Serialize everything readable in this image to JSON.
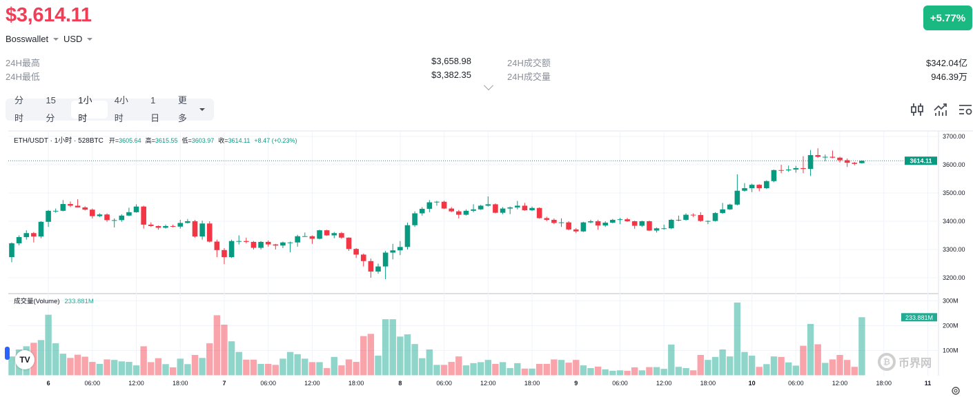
{
  "header": {
    "price": "$3,614.11",
    "exchange": "Bosswallet",
    "currency": "USD",
    "change_badge": "+5.77%",
    "colors": {
      "down": "#f23d57",
      "up": "#19b981"
    }
  },
  "stats": [
    {
      "label": "24H最高",
      "value": "$3,658.98"
    },
    {
      "label": "24H最低",
      "value": "$3,382.35"
    },
    {
      "label": "24H成交额",
      "value": "$342.04亿"
    },
    {
      "label": "24H成交量",
      "value": "946.39万"
    }
  ],
  "intervals": [
    {
      "label": "分时",
      "active": false
    },
    {
      "label": "15分",
      "active": false
    },
    {
      "label": "1小时",
      "active": true
    },
    {
      "label": "4小时",
      "active": false
    },
    {
      "label": "1日",
      "active": false
    },
    {
      "label": "更多",
      "active": false
    }
  ],
  "toolbar_icons": [
    "candlestick-icon",
    "indicator-icon",
    "settings-list-icon"
  ],
  "legend": {
    "symbol": "ETH/USDT · 1小时 · 528BTC",
    "open_label": "开=",
    "open": "3605.64",
    "high_label": "高=",
    "high": "3615.55",
    "low_label": "低=",
    "low": "3603.97",
    "close_label": "收=",
    "close": "3614.11",
    "change": "+8.47 (+0.23%)"
  },
  "volume_legend": {
    "label": "成交量(Volume)",
    "value": "233.881M"
  },
  "watermark": "币界网",
  "tv_logo": "TV",
  "chart_data": {
    "type": "candlestick",
    "interval": "1h",
    "first_bar": "5 19:00",
    "price_axis": {
      "ticks": [
        "3700.00",
        "3600.00",
        "3500.00",
        "3400.00",
        "3300.00",
        "3200.00"
      ],
      "tick_values": [
        3700,
        3600,
        3500,
        3400,
        3300,
        3200
      ],
      "range": [
        3180,
        3740
      ]
    },
    "volume_axis": {
      "ticks": [
        "300M",
        "200M",
        "100M"
      ],
      "tick_values": [
        300,
        200,
        100
      ],
      "unit": "M"
    },
    "last_price_label": "3614.11",
    "last_price": 3614.11,
    "last_volume_label": "233.881M",
    "last_volume": 233.881,
    "time_ticks": [
      {
        "label": "6",
        "bar": 5
      },
      {
        "label": "06:00",
        "bar": 11
      },
      {
        "label": "12:00",
        "bar": 17
      },
      {
        "label": "18:00",
        "bar": 23
      },
      {
        "label": "7",
        "bar": 29
      },
      {
        "label": "06:00",
        "bar": 35
      },
      {
        "label": "12:00",
        "bar": 41
      },
      {
        "label": "18:00",
        "bar": 47
      },
      {
        "label": "8",
        "bar": 53
      },
      {
        "label": "06:00",
        "bar": 59
      },
      {
        "label": "12:00",
        "bar": 65
      },
      {
        "label": "18:00",
        "bar": 71
      },
      {
        "label": "9",
        "bar": 77
      },
      {
        "label": "06:00",
        "bar": 83
      },
      {
        "label": "12:00",
        "bar": 89
      },
      {
        "label": "18:00",
        "bar": 95
      },
      {
        "label": "10",
        "bar": 101
      },
      {
        "label": "06:00",
        "bar": 107
      },
      {
        "label": "12:00",
        "bar": 113
      },
      {
        "label": "18:00",
        "bar": 119
      },
      {
        "label": "11",
        "bar": 125
      }
    ],
    "ohlc": [
      [
        3273,
        3325,
        3255,
        3322
      ],
      [
        3322,
        3350,
        3315,
        3344
      ],
      [
        3344,
        3368,
        3335,
        3358
      ],
      [
        3358,
        3362,
        3325,
        3346
      ],
      [
        3346,
        3400,
        3340,
        3398
      ],
      [
        3398,
        3440,
        3380,
        3437
      ],
      [
        3437,
        3445,
        3430,
        3437
      ],
      [
        3437,
        3475,
        3435,
        3461
      ],
      [
        3461,
        3470,
        3450,
        3455
      ],
      [
        3455,
        3478,
        3450,
        3449
      ],
      [
        3449,
        3453,
        3438,
        3441
      ],
      [
        3441,
        3445,
        3410,
        3418
      ],
      [
        3418,
        3428,
        3415,
        3424
      ],
      [
        3424,
        3428,
        3398,
        3404
      ],
      [
        3404,
        3410,
        3378,
        3404
      ],
      [
        3404,
        3425,
        3398,
        3420
      ],
      [
        3420,
        3448,
        3418,
        3432
      ],
      [
        3432,
        3460,
        3430,
        3452
      ],
      [
        3452,
        3455,
        3374,
        3388
      ],
      [
        3388,
        3396,
        3380,
        3383
      ],
      [
        3383,
        3385,
        3370,
        3377
      ],
      [
        3377,
        3388,
        3374,
        3383
      ],
      [
        3383,
        3388,
        3378,
        3381
      ],
      [
        3381,
        3405,
        3374,
        3394
      ],
      [
        3394,
        3408,
        3392,
        3400
      ],
      [
        3400,
        3405,
        3342,
        3346
      ],
      [
        3346,
        3402,
        3335,
        3392
      ],
      [
        3392,
        3400,
        3325,
        3328
      ],
      [
        3328,
        3335,
        3273,
        3298
      ],
      [
        3298,
        3305,
        3248,
        3273
      ],
      [
        3273,
        3335,
        3270,
        3330
      ],
      [
        3330,
        3350,
        3318,
        3330
      ],
      [
        3330,
        3342,
        3322,
        3327
      ],
      [
        3327,
        3330,
        3300,
        3306
      ],
      [
        3306,
        3330,
        3300,
        3327
      ],
      [
        3327,
        3332,
        3310,
        3318
      ],
      [
        3318,
        3320,
        3300,
        3314
      ],
      [
        3314,
        3328,
        3305,
        3325
      ],
      [
        3325,
        3328,
        3290,
        3325
      ],
      [
        3325,
        3352,
        3310,
        3347
      ],
      [
        3347,
        3360,
        3345,
        3347
      ],
      [
        3347,
        3350,
        3320,
        3338
      ],
      [
        3338,
        3370,
        3336,
        3368
      ],
      [
        3368,
        3370,
        3348,
        3350
      ],
      [
        3350,
        3362,
        3340,
        3358
      ],
      [
        3358,
        3362,
        3338,
        3342
      ],
      [
        3342,
        3343,
        3295,
        3302
      ],
      [
        3302,
        3305,
        3270,
        3282
      ],
      [
        3282,
        3286,
        3240,
        3259
      ],
      [
        3259,
        3268,
        3200,
        3222
      ],
      [
        3222,
        3250,
        3215,
        3240
      ],
      [
        3240,
        3295,
        3195,
        3289
      ],
      [
        3289,
        3320,
        3265,
        3297
      ],
      [
        3297,
        3330,
        3280,
        3309
      ],
      [
        3309,
        3395,
        3300,
        3386
      ],
      [
        3386,
        3435,
        3380,
        3428
      ],
      [
        3428,
        3450,
        3420,
        3444
      ],
      [
        3444,
        3475,
        3432,
        3467
      ],
      [
        3467,
        3472,
        3455,
        3469
      ],
      [
        3469,
        3473,
        3443,
        3445
      ],
      [
        3445,
        3450,
        3432,
        3435
      ],
      [
        3435,
        3440,
        3410,
        3423
      ],
      [
        3423,
        3442,
        3420,
        3437
      ],
      [
        3437,
        3460,
        3432,
        3442
      ],
      [
        3442,
        3458,
        3440,
        3455
      ],
      [
        3455,
        3488,
        3452,
        3460
      ],
      [
        3460,
        3463,
        3428,
        3430
      ],
      [
        3430,
        3450,
        3425,
        3445
      ],
      [
        3445,
        3452,
        3425,
        3449
      ],
      [
        3449,
        3472,
        3442,
        3455
      ],
      [
        3455,
        3465,
        3437,
        3439
      ],
      [
        3439,
        3452,
        3436,
        3447
      ],
      [
        3447,
        3449,
        3409,
        3411
      ],
      [
        3411,
        3416,
        3400,
        3405
      ],
      [
        3405,
        3410,
        3390,
        3394
      ],
      [
        3394,
        3410,
        3380,
        3396
      ],
      [
        3396,
        3400,
        3368,
        3371
      ],
      [
        3371,
        3376,
        3358,
        3364
      ],
      [
        3364,
        3398,
        3362,
        3396
      ],
      [
        3396,
        3405,
        3393,
        3400
      ],
      [
        3400,
        3405,
        3370,
        3385
      ],
      [
        3385,
        3400,
        3380,
        3395
      ],
      [
        3395,
        3408,
        3393,
        3405
      ],
      [
        3405,
        3412,
        3390,
        3407
      ],
      [
        3407,
        3412,
        3398,
        3400
      ],
      [
        3400,
        3402,
        3373,
        3384
      ],
      [
        3384,
        3402,
        3380,
        3400
      ],
      [
        3400,
        3402,
        3366,
        3367
      ],
      [
        3367,
        3378,
        3360,
        3375
      ],
      [
        3375,
        3388,
        3370,
        3375
      ],
      [
        3375,
        3408,
        3372,
        3405
      ],
      [
        3405,
        3420,
        3400,
        3405
      ],
      [
        3405,
        3428,
        3402,
        3423
      ],
      [
        3423,
        3428,
        3415,
        3422
      ],
      [
        3422,
        3432,
        3398,
        3401
      ],
      [
        3401,
        3403,
        3390,
        3401
      ],
      [
        3401,
        3432,
        3399,
        3429
      ],
      [
        3429,
        3465,
        3426,
        3442
      ],
      [
        3442,
        3462,
        3440,
        3459
      ],
      [
        3459,
        3566,
        3456,
        3508
      ],
      [
        3508,
        3535,
        3505,
        3517
      ],
      [
        3517,
        3533,
        3503,
        3529
      ],
      [
        3529,
        3531,
        3506,
        3517
      ],
      [
        3517,
        3545,
        3514,
        3542
      ],
      [
        3542,
        3583,
        3538,
        3581
      ],
      [
        3581,
        3600,
        3570,
        3580
      ],
      [
        3580,
        3597,
        3575,
        3583
      ],
      [
        3583,
        3596,
        3572,
        3588
      ],
      [
        3588,
        3630,
        3570,
        3585
      ],
      [
        3585,
        3652,
        3560,
        3634
      ],
      [
        3634,
        3658,
        3624,
        3628
      ],
      [
        3628,
        3636,
        3612,
        3628
      ],
      [
        3628,
        3650,
        3623,
        3625
      ],
      [
        3625,
        3628,
        3608,
        3616
      ],
      [
        3616,
        3622,
        3592,
        3607
      ],
      [
        3607,
        3610,
        3598,
        3603
      ],
      [
        3605.64,
        3615.55,
        3603.97,
        3614.11
      ]
    ],
    "volume_m": [
      76,
      104,
      117,
      131,
      142,
      244,
      129,
      87,
      70,
      83,
      75,
      54,
      46,
      64,
      62,
      56,
      54,
      40,
      117,
      53,
      69,
      45,
      32,
      67,
      45,
      82,
      70,
      129,
      242,
      204,
      137,
      94,
      63,
      63,
      46,
      46,
      42,
      67,
      94,
      85,
      67,
      53,
      53,
      29,
      74,
      40,
      64,
      54,
      158,
      167,
      79,
      226,
      226,
      156,
      165,
      126,
      69,
      104,
      42,
      42,
      54,
      76,
      40,
      49,
      53,
      62,
      46,
      53,
      29,
      49,
      27,
      27,
      46,
      46,
      64,
      62,
      51,
      62,
      40,
      29,
      35,
      24,
      18,
      20,
      18,
      32,
      20,
      33,
      33,
      26,
      124,
      34,
      29,
      20,
      82,
      62,
      74,
      104,
      76,
      293,
      94,
      79,
      34,
      45,
      76,
      74,
      52,
      39,
      119,
      207,
      125,
      50,
      64,
      82,
      62,
      34,
      234
    ]
  }
}
